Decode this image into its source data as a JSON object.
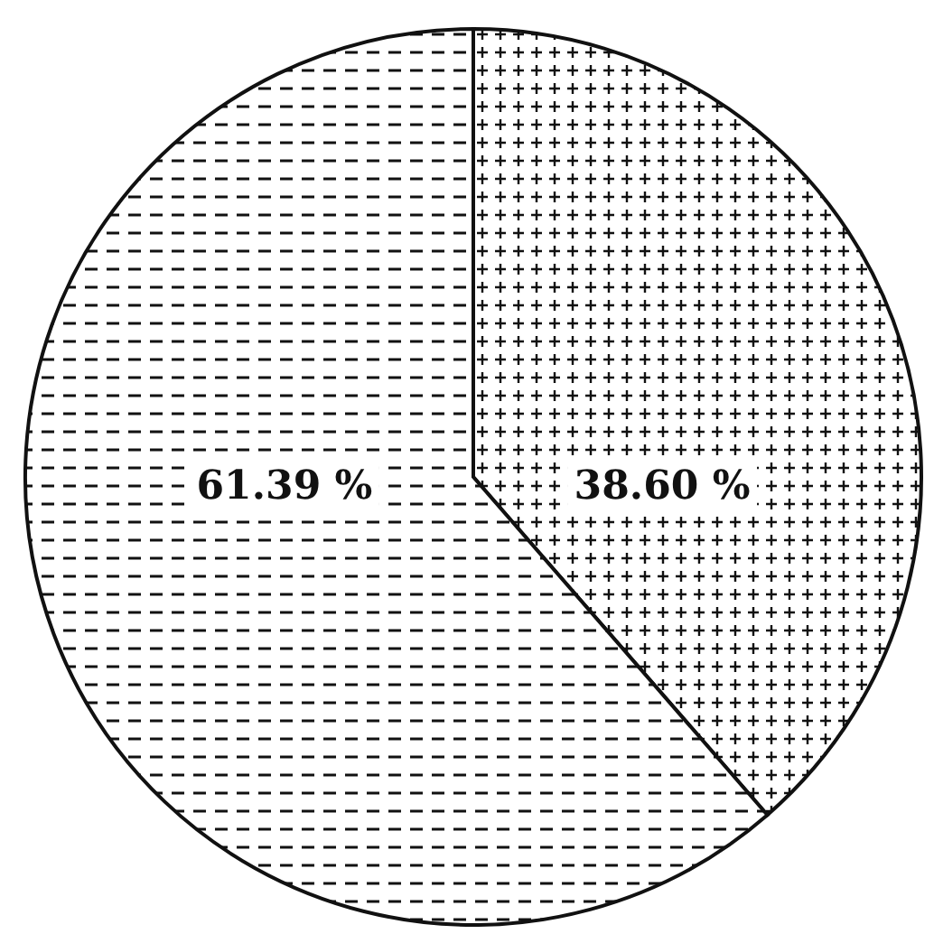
{
  "chart_data": {
    "type": "pie",
    "categories": [
      null,
      null
    ],
    "values": [
      38.6,
      61.39
    ],
    "colors": [
      "#111111",
      "#111111"
    ],
    "value_labels": [
      "38.60 %",
      "61.39 %"
    ]
  }
}
